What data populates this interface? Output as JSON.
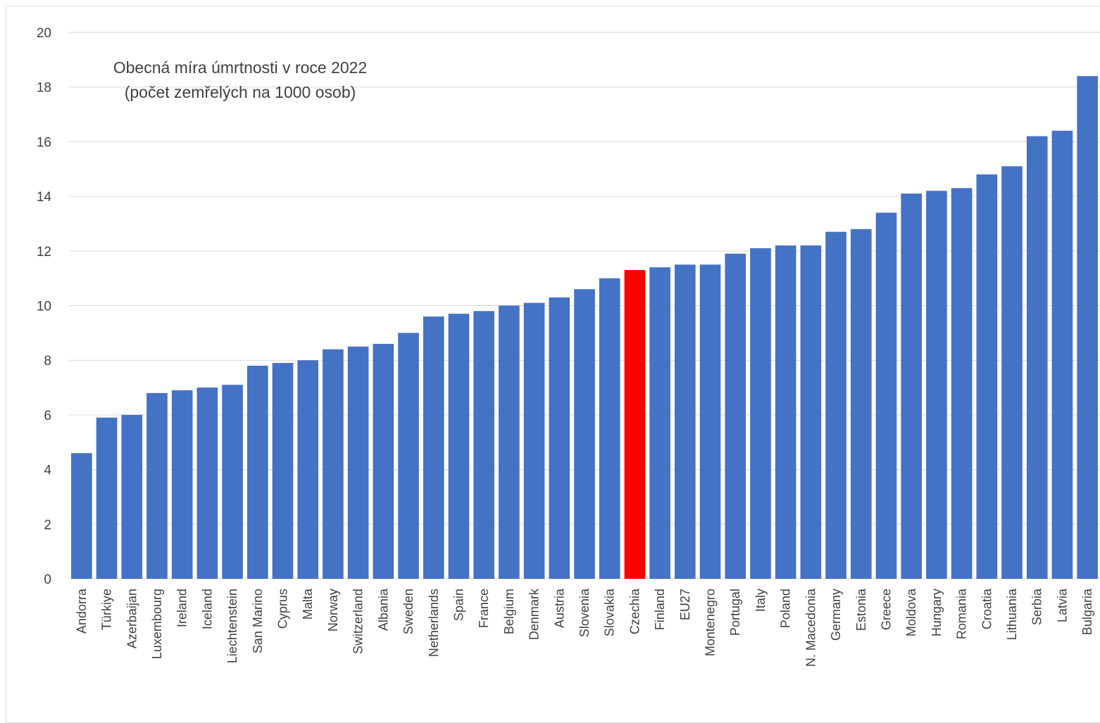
{
  "chart_data": {
    "type": "bar",
    "title_lines": [
      "Obecná míra úmrtnosti v roce 2022",
      "(počet zemřelých na 1000 osob)"
    ],
    "xlabel": "",
    "ylabel": "",
    "ylim": [
      0,
      20
    ],
    "yticks": [
      0,
      2,
      4,
      6,
      8,
      10,
      12,
      14,
      16,
      18,
      20
    ],
    "grid": true,
    "legend": "none",
    "colors": {
      "default": "#4472C4",
      "highlight": "#FF0000"
    },
    "highlight_category": "Czechia",
    "categories": [
      "Andorra",
      "Türkiye",
      "Azerbaijan",
      "Luxembourg",
      "Ireland",
      "Iceland",
      "Liechtenstein",
      "San Marino",
      "Cyprus",
      "Malta",
      "Norway",
      "Switzerland",
      "Albania",
      "Sweden",
      "Netherlands",
      "Spain",
      "France",
      "Belgium",
      "Denmark",
      "Austria",
      "Slovenia",
      "Slovakia",
      "Czechia",
      "Finland",
      "EU27",
      "Montenegro",
      "Portugal",
      "Italy",
      "Poland",
      "N. Macedonia",
      "Germany",
      "Estonia",
      "Greece",
      "Moldova",
      "Hungary",
      "Romania",
      "Croatia",
      "Lithuania",
      "Serbia",
      "Latvia",
      "Bulgaria"
    ],
    "values": [
      4.6,
      5.9,
      6.0,
      6.8,
      6.9,
      7.0,
      7.1,
      7.8,
      7.9,
      8.0,
      8.4,
      8.5,
      8.6,
      9.0,
      9.6,
      9.7,
      9.8,
      10.0,
      10.1,
      10.3,
      10.6,
      11.0,
      11.3,
      11.4,
      11.5,
      11.5,
      11.9,
      12.1,
      12.2,
      12.2,
      12.7,
      12.8,
      13.4,
      14.1,
      14.2,
      14.3,
      14.8,
      15.1,
      16.2,
      16.4,
      18.4
    ]
  }
}
